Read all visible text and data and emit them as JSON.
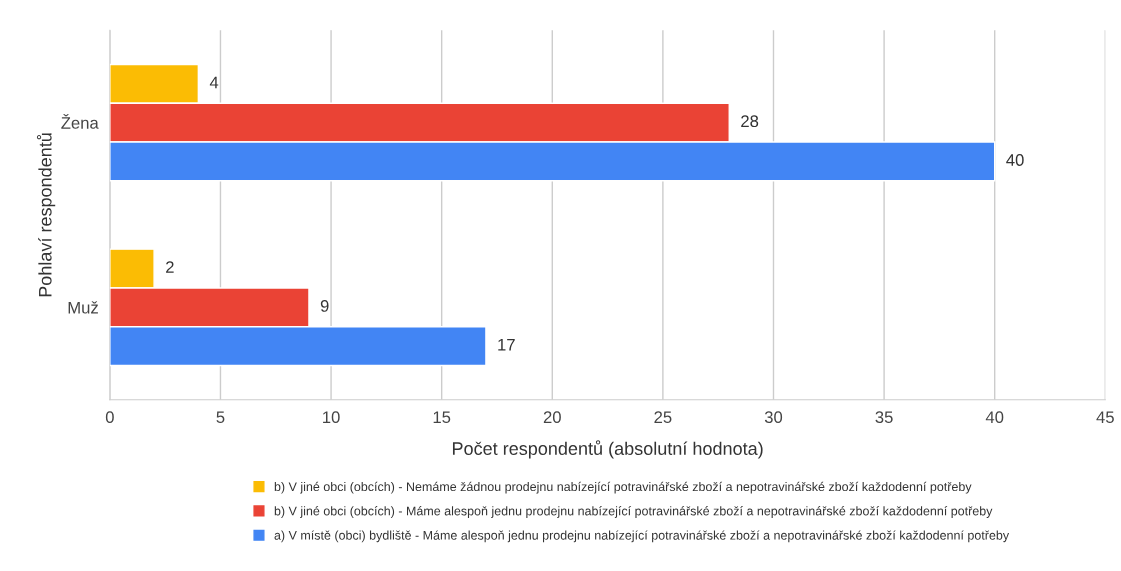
{
  "chart_data": {
    "type": "bar",
    "orientation": "horizontal",
    "xlabel": "Počet respondentů (absolutní hodnota)",
    "ylabel": "Pohlaví respondentů",
    "categories": [
      "Žena",
      "Muž"
    ],
    "series": [
      {
        "name": "b) V jiné obci (obcích) - Nemáme žádnou prodejnu nabízející potravinářské zboží a nepotravinářské zboží každodenní potřeby",
        "color": "#fbbc04",
        "values": [
          4,
          2
        ]
      },
      {
        "name": "b) V jiné obci (obcích) - Máme alespoň jednu prodejnu nabízející potravinářské zboží a nepotravinářské zboží každodenní potřeby",
        "color": "#ea4335",
        "values": [
          28,
          9
        ]
      },
      {
        "name": "a) V místě (obci) bydliště - Máme alespoň jednu prodejnu nabízející potravinářské zboží a nepotravinářské zboží každodenní potřeby",
        "color": "#4285f4",
        "values": [
          40,
          17
        ]
      }
    ],
    "xlim": [
      0,
      45
    ],
    "xticks": [
      0,
      5,
      10,
      15,
      20,
      25,
      30,
      35,
      40,
      45
    ],
    "grid": "x",
    "legend": "bottom",
    "data_labels": true,
    "marker": "square"
  }
}
